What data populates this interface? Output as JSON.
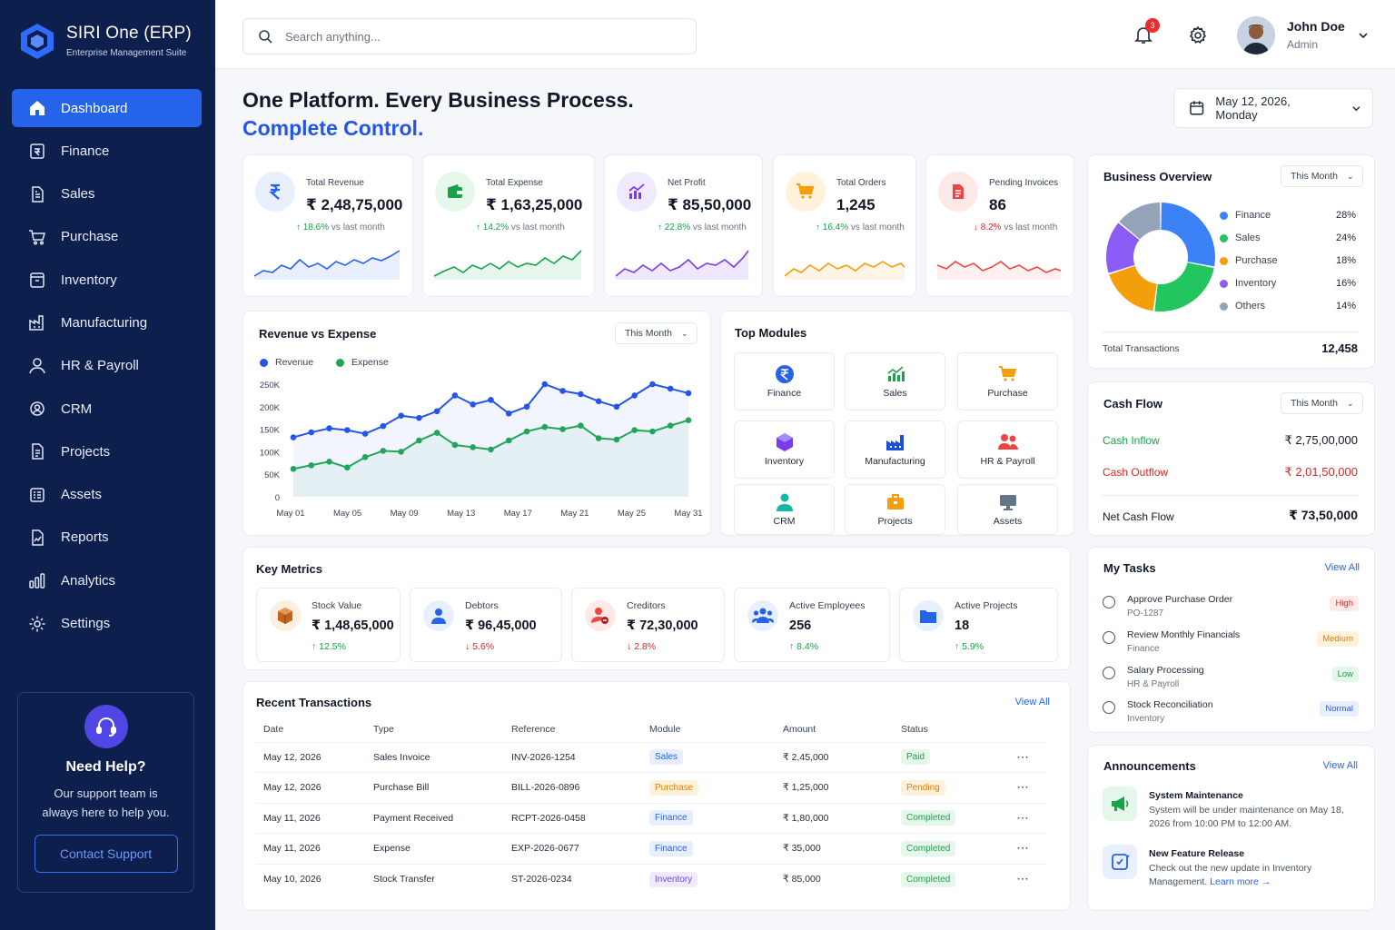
{
  "app": {
    "name": "SIRI One (ERP)",
    "tagline": "Enterprise Management Suite"
  },
  "sidebar": {
    "items": [
      {
        "label": "Dashboard",
        "icon": "home-icon",
        "active": true
      },
      {
        "label": "Finance",
        "icon": "finance-icon"
      },
      {
        "label": "Sales",
        "icon": "sales-icon"
      },
      {
        "label": "Purchase",
        "icon": "cart-icon"
      },
      {
        "label": "Inventory",
        "icon": "inventory-icon"
      },
      {
        "label": "Manufacturing",
        "icon": "factory-icon"
      },
      {
        "label": "HR & Payroll",
        "icon": "user-icon"
      },
      {
        "label": "CRM",
        "icon": "crm-icon"
      },
      {
        "label": "Projects",
        "icon": "projects-icon"
      },
      {
        "label": "Assets",
        "icon": "assets-icon"
      },
      {
        "label": "Reports",
        "icon": "reports-icon"
      },
      {
        "label": "Analytics",
        "icon": "analytics-icon"
      },
      {
        "label": "Settings",
        "icon": "gear-icon"
      }
    ],
    "help": {
      "title": "Need Help?",
      "text": "Our support team is always here to help you.",
      "button": "Contact Support"
    }
  },
  "header": {
    "search_placeholder": "Search anything...",
    "notifications": "3",
    "user": {
      "name": "John Doe",
      "role": "Admin"
    }
  },
  "hero": {
    "line1": "One Platform. Every Business Process.",
    "line2": "Complete Control.",
    "date": "May 12, 2026, Monday"
  },
  "kpis": [
    {
      "label": "Total Revenue",
      "value": "₹ 2,48,75,000",
      "change": "18.6%",
      "dir": "up",
      "suffix": "vs last month",
      "color": "#2563eb"
    },
    {
      "label": "Total Expense",
      "value": "₹ 1,63,25,000",
      "change": "14.2%",
      "dir": "up",
      "suffix": "vs last month",
      "color": "#16a34a"
    },
    {
      "label": "Net Profit",
      "value": "₹ 85,50,000",
      "change": "22.8%",
      "dir": "up",
      "suffix": "vs last month",
      "color": "#7c3aed"
    },
    {
      "label": "Total Orders",
      "value": "1,245",
      "change": "16.4%",
      "dir": "up",
      "suffix": "vs last month",
      "color": "#f59e0b"
    },
    {
      "label": "Pending Invoices",
      "value": "86",
      "change": "8.2%",
      "dir": "down",
      "suffix": "vs last month",
      "color": "#ef4444"
    }
  ],
  "revenue_chart": {
    "title": "Revenue vs Expense",
    "period": "This Month",
    "legend": [
      "Revenue",
      "Expense"
    ]
  },
  "chart_data": {
    "type": "line",
    "title": "Revenue vs Expense",
    "x_ticks": [
      "May 01",
      "May 05",
      "May 09",
      "May 13",
      "May 17",
      "May 21",
      "May 25",
      "May 31"
    ],
    "y_ticks": [
      "250K",
      "200K",
      "150K",
      "100K",
      "50K",
      "0"
    ],
    "ylim": [
      0,
      250000
    ],
    "x": [
      1,
      2,
      3,
      4,
      5,
      6,
      7,
      8,
      9,
      10,
      11,
      12,
      13,
      14,
      15,
      16,
      17,
      18,
      19,
      20,
      21,
      22,
      23
    ],
    "series": [
      {
        "name": "Revenue",
        "color": "#2455e6",
        "values": [
          132000,
          143000,
          152000,
          148000,
          140000,
          157000,
          180000,
          175000,
          190000,
          225000,
          205000,
          215000,
          185000,
          200000,
          250000,
          235000,
          228000,
          212000,
          200000,
          225000,
          250000,
          240000,
          230000
        ]
      },
      {
        "name": "Expense",
        "color": "#22a55b",
        "values": [
          62000,
          70000,
          78000,
          65000,
          88000,
          102000,
          100000,
          125000,
          142000,
          115000,
          110000,
          105000,
          125000,
          145000,
          155000,
          150000,
          158000,
          130000,
          127000,
          148000,
          145000,
          158000,
          170000
        ]
      }
    ],
    "grid": false,
    "legend_position": "top-left"
  },
  "top_modules": {
    "title": "Top Modules",
    "items": [
      {
        "label": "Finance",
        "icon": "rupee-icon",
        "color": "#2563eb"
      },
      {
        "label": "Sales",
        "icon": "chart-up-icon",
        "color": "#16a34a"
      },
      {
        "label": "Purchase",
        "icon": "cart-icon",
        "color": "#f59e0b"
      },
      {
        "label": "Inventory",
        "icon": "cube-icon",
        "color": "#7c3aed"
      },
      {
        "label": "Manufacturing",
        "icon": "factory-icon",
        "color": "#1d4ed8"
      },
      {
        "label": "HR & Payroll",
        "icon": "users-icon",
        "color": "#ef4444"
      },
      {
        "label": "CRM",
        "icon": "person-icon",
        "color": "#14b8a6"
      },
      {
        "label": "Projects",
        "icon": "briefcase-icon",
        "color": "#f59e0b"
      },
      {
        "label": "Assets",
        "icon": "monitor-icon",
        "color": "#64748b"
      }
    ]
  },
  "business_overview": {
    "title": "Business Overview",
    "period": "This Month",
    "segments": [
      {
        "label": "Finance",
        "pct": "28%",
        "value": 28,
        "color": "#3b82f6"
      },
      {
        "label": "Sales",
        "pct": "24%",
        "value": 24,
        "color": "#22c55e"
      },
      {
        "label": "Purchase",
        "pct": "18%",
        "value": 18,
        "color": "#f59e0b"
      },
      {
        "label": "Inventory",
        "pct": "16%",
        "value": 16,
        "color": "#8b5cf6"
      },
      {
        "label": "Others",
        "pct": "14%",
        "value": 14,
        "color": "#94a3b8"
      }
    ],
    "total_label": "Total Transactions",
    "total_value": "12,458"
  },
  "cash_flow": {
    "title": "Cash Flow",
    "period": "This Month",
    "inflow_label": "Cash Inflow",
    "inflow": "₹ 2,75,00,000",
    "outflow_label": "Cash Outflow",
    "outflow": "₹ 2,01,50,000",
    "net_label": "Net Cash Flow",
    "net": "₹ 73,50,000"
  },
  "key_metrics": {
    "title": "Key Metrics",
    "items": [
      {
        "label": "Stock Value",
        "value": "₹ 1,48,65,000",
        "change": "12.5%",
        "dir": "up",
        "icon": "box-icon"
      },
      {
        "label": "Debtors",
        "value": "₹ 96,45,000",
        "change": "5.6%",
        "dir": "down",
        "icon": "person-icon"
      },
      {
        "label": "Creditors",
        "value": "₹ 72,30,000",
        "change": "2.8%",
        "dir": "down",
        "icon": "creditor-icon"
      },
      {
        "label": "Active Employees",
        "value": "256",
        "change": "8.4%",
        "dir": "up",
        "icon": "users-icon"
      },
      {
        "label": "Active Projects",
        "value": "18",
        "change": "5.9%",
        "dir": "up",
        "icon": "folder-icon"
      }
    ]
  },
  "transactions": {
    "title": "Recent Transactions",
    "view_all": "View All",
    "columns": [
      "Date",
      "Type",
      "Reference",
      "Module",
      "Amount",
      "Status"
    ],
    "rows": [
      {
        "date": "May 12, 2026",
        "type": "Sales Invoice",
        "ref": "INV-2026-1254",
        "module": "Sales",
        "amount": "₹ 2,45,000",
        "status": "Paid"
      },
      {
        "date": "May 12, 2026",
        "type": "Purchase Bill",
        "ref": "BILL-2026-0896",
        "module": "Purchase",
        "amount": "₹ 1,25,000",
        "status": "Pending"
      },
      {
        "date": "May 11, 2026",
        "type": "Payment Received",
        "ref": "RCPT-2026-0458",
        "module": "Finance",
        "amount": "₹ 1,80,000",
        "status": "Completed"
      },
      {
        "date": "May 11, 2026",
        "type": "Expense",
        "ref": "EXP-2026-0677",
        "module": "Finance",
        "amount": "₹ 35,000",
        "status": "Completed"
      },
      {
        "date": "May 10, 2026",
        "type": "Stock Transfer",
        "ref": "ST-2026-0234",
        "module": "Inventory",
        "amount": "₹ 85,000",
        "status": "Completed"
      }
    ],
    "more": "···"
  },
  "tasks": {
    "title": "My Tasks",
    "view_all": "View All",
    "items": [
      {
        "title": "Approve Purchase Order",
        "sub": "PO-1287",
        "tag": "High"
      },
      {
        "title": "Review Monthly Financials",
        "sub": "Finance",
        "tag": "Medium"
      },
      {
        "title": "Salary Processing",
        "sub": "HR & Payroll",
        "tag": "Low"
      },
      {
        "title": "Stock Reconciliation",
        "sub": "Inventory",
        "tag": "Normal"
      }
    ]
  },
  "announcements": {
    "title": "Announcements",
    "view_all": "View All",
    "items": [
      {
        "title": "System Maintenance",
        "text": "System will be under maintenance on May 18, 2026 from 10:00 PM to 12:00 AM.",
        "icon": "megaphone-icon"
      },
      {
        "title": "New Feature Release",
        "text": "Check out the new update in Inventory Management.",
        "link": "Learn more →",
        "icon": "feature-icon"
      }
    ]
  }
}
